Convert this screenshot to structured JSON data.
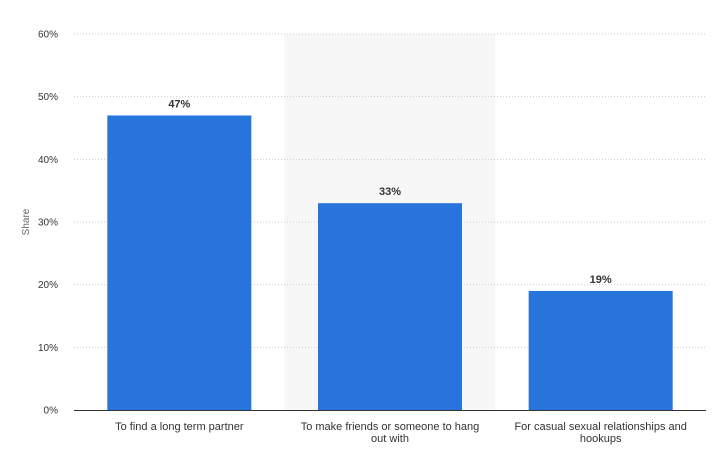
{
  "chart_data": {
    "type": "bar",
    "categories": [
      [
        "To find a long term partner"
      ],
      [
        "To make friends or someone to hang",
        "out with"
      ],
      [
        "For casual sexual relationships and",
        "hookups"
      ]
    ],
    "values": [
      47,
      33,
      19
    ],
    "value_labels": [
      "47%",
      "33%",
      "19%"
    ],
    "ylabel": "Share",
    "ylim": [
      0,
      60
    ],
    "yticks": [
      0,
      10,
      20,
      30,
      40,
      50,
      60
    ],
    "ytick_labels": [
      "0%",
      "10%",
      "20%",
      "30%",
      "40%",
      "50%",
      "60%"
    ],
    "grid": true,
    "highlighted_category_index": 1,
    "colors": {
      "bar": "#2874dd",
      "grid": "#cccccc",
      "highlight": "#f7f7f7",
      "axis": "#333333"
    }
  }
}
